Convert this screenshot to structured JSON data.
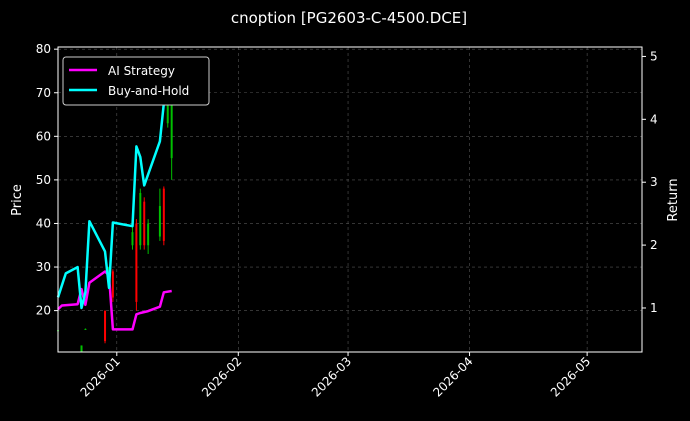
{
  "chart_data": {
    "type": "line",
    "title": "cnoption [PG2603-C-4500.DCE]",
    "xlabel": "",
    "ylabel": "Price",
    "y2label": "Return",
    "x_range": [
      "2025-12-17",
      "2026-05-15"
    ],
    "x_ticks": [
      "2026-01",
      "2026-02",
      "2026-03",
      "2026-04",
      "2026-05"
    ],
    "x_tick_dates": [
      "2026-01-01",
      "2026-02-01",
      "2026-03-01",
      "2026-04-01",
      "2026-05-01"
    ],
    "ylim": [
      10.5,
      80.5
    ],
    "y_ticks": [
      20,
      30,
      40,
      50,
      60,
      70,
      80
    ],
    "y2lim": [
      0.3,
      5.15
    ],
    "y2_ticks": [
      1,
      2,
      3,
      4,
      5
    ],
    "grid": true,
    "legend_position": "top-left",
    "colors": {
      "up": "#00c000",
      "down": "#ff0000"
    },
    "candles": [
      {
        "date": "2025-12-17",
        "open": 15.5,
        "close": 15.5,
        "high": 16.0,
        "low": 15.2
      },
      {
        "date": "2025-12-23",
        "open": 10.5,
        "close": 12.0,
        "high": 12.0,
        "low": 10.5
      },
      {
        "date": "2025-12-24",
        "open": 15.7,
        "close": 15.8,
        "high": 15.9,
        "low": 15.6
      },
      {
        "date": "2025-12-29",
        "open": 20.0,
        "close": 13.0,
        "high": 20.0,
        "low": 12.5
      },
      {
        "date": "2025-12-30",
        "open": 28.0,
        "close": 30.0,
        "high": 30.0,
        "low": 27.0
      },
      {
        "date": "2025-12-31",
        "open": 29.0,
        "close": 23.0,
        "high": 29.5,
        "low": 22.0
      },
      {
        "date": "2026-01-05",
        "open": 35.0,
        "close": 38.0,
        "high": 40.0,
        "low": 34.0
      },
      {
        "date": "2026-01-06",
        "open": 40.0,
        "close": 22.0,
        "high": 41.0,
        "low": 20.0
      },
      {
        "date": "2026-01-07",
        "open": 35.0,
        "close": 47.0,
        "high": 48.0,
        "low": 34.0
      },
      {
        "date": "2026-01-08",
        "open": 45.0,
        "close": 35.0,
        "high": 46.0,
        "low": 34.0
      },
      {
        "date": "2026-01-09",
        "open": 35.0,
        "close": 40.0,
        "high": 41.0,
        "low": 33.0
      },
      {
        "date": "2026-01-12",
        "open": 37.0,
        "close": 44.0,
        "high": 48.0,
        "low": 36.0
      },
      {
        "date": "2026-01-13",
        "open": 48.0,
        "close": 36.0,
        "high": 48.5,
        "low": 35.0
      },
      {
        "date": "2026-01-14",
        "open": 63.0,
        "close": 72.0,
        "high": 75.0,
        "low": 62.0
      },
      {
        "date": "2026-01-15",
        "open": 55.0,
        "close": 68.0,
        "high": 70.0,
        "low": 50.0
      }
    ],
    "series": [
      {
        "name": "AI Strategy",
        "color": "#ff00ff",
        "axis": "right",
        "x": [
          "2025-12-17",
          "2025-12-18",
          "2025-12-22",
          "2025-12-23",
          "2025-12-24",
          "2025-12-25",
          "2025-12-29",
          "2025-12-30",
          "2025-12-31",
          "2026-01-05",
          "2026-01-06",
          "2026-01-07",
          "2026-01-09",
          "2026-01-12",
          "2026-01-13",
          "2026-01-15"
        ],
        "values": [
          0.98,
          1.04,
          1.06,
          1.3,
          1.05,
          1.4,
          1.58,
          1.52,
          0.66,
          0.66,
          0.9,
          0.92,
          0.95,
          1.02,
          1.25,
          1.27
        ]
      },
      {
        "name": "Buy-and-Hold",
        "color": "#00ffff",
        "axis": "right",
        "x": [
          "2025-12-17",
          "2025-12-19",
          "2025-12-22",
          "2025-12-23",
          "2025-12-24",
          "2025-12-25",
          "2025-12-29",
          "2025-12-30",
          "2025-12-31",
          "2026-01-05",
          "2026-01-06",
          "2026-01-07",
          "2026-01-08",
          "2026-01-12",
          "2026-01-13",
          "2026-01-14",
          "2026-01-15"
        ],
        "values": [
          1.17,
          1.55,
          1.65,
          1.0,
          1.25,
          2.38,
          1.9,
          1.32,
          2.36,
          2.3,
          3.57,
          3.4,
          2.95,
          3.65,
          4.25,
          4.5,
          4.9
        ]
      }
    ]
  }
}
